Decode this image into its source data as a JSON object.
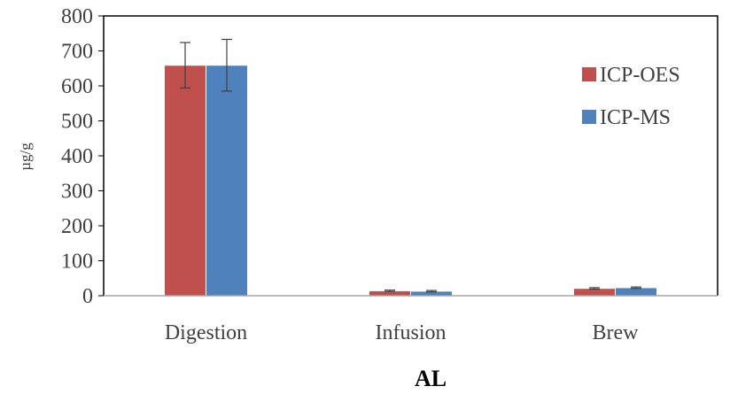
{
  "chart_data": {
    "type": "bar",
    "categories": [
      "Digestion",
      "Infusion",
      "Brew"
    ],
    "series": [
      {
        "name": "ICP-OES",
        "color": "#c0504d",
        "values": [
          659,
          14,
          21
        ],
        "errors": [
          65,
          2,
          2
        ]
      },
      {
        "name": "ICP-MS",
        "color": "#4f81bd",
        "values": [
          659,
          13,
          23
        ],
        "errors": [
          74,
          2,
          2
        ]
      }
    ],
    "yticks": [
      "0",
      "100",
      "200",
      "300",
      "400",
      "500",
      "600",
      "700",
      "800"
    ],
    "ylim": [
      0,
      800
    ],
    "ylabel": "µg/g",
    "xlabel": "AL",
    "legend_position": "right",
    "grid": false
  }
}
